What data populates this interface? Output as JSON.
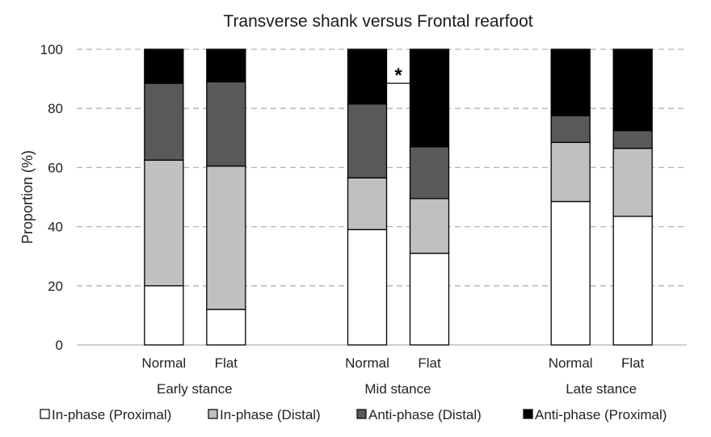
{
  "chart_data": {
    "type": "bar",
    "stacked": true,
    "title": "Transverse shank versus Frontal rearfoot",
    "ylabel": "Proportion (%)",
    "xlabel": "",
    "ylim": [
      0,
      100
    ],
    "yticks": [
      0,
      20,
      40,
      60,
      80,
      100
    ],
    "grid": "horizontal dashed",
    "legend_position": "bottom",
    "groups": [
      "Early stance",
      "Mid stance",
      "Late stance"
    ],
    "categories": [
      "Normal",
      "Flat"
    ],
    "series": [
      {
        "name": "In-phase (Proximal)",
        "color": "#ffffff",
        "values": [
          [
            20,
            12
          ],
          [
            39,
            31
          ],
          [
            48.5,
            43.5
          ]
        ]
      },
      {
        "name": "In-phase (Distal)",
        "color": "#c0c0c0",
        "values": [
          [
            42.5,
            48.5
          ],
          [
            17.5,
            18.5
          ],
          [
            20,
            23
          ]
        ]
      },
      {
        "name": "Anti-phase (Distal)",
        "color": "#595959",
        "values": [
          [
            26,
            28.5
          ],
          [
            25,
            17.5
          ],
          [
            9,
            6
          ]
        ]
      },
      {
        "name": "Anti-phase (Proximal)",
        "color": "#000000",
        "values": [
          [
            11.5,
            11
          ],
          [
            18.5,
            33
          ],
          [
            22.5,
            27.5
          ]
        ]
      }
    ],
    "annotations": [
      {
        "text": "*",
        "group": "Mid stance",
        "bracket_at": 88.5
      }
    ]
  }
}
